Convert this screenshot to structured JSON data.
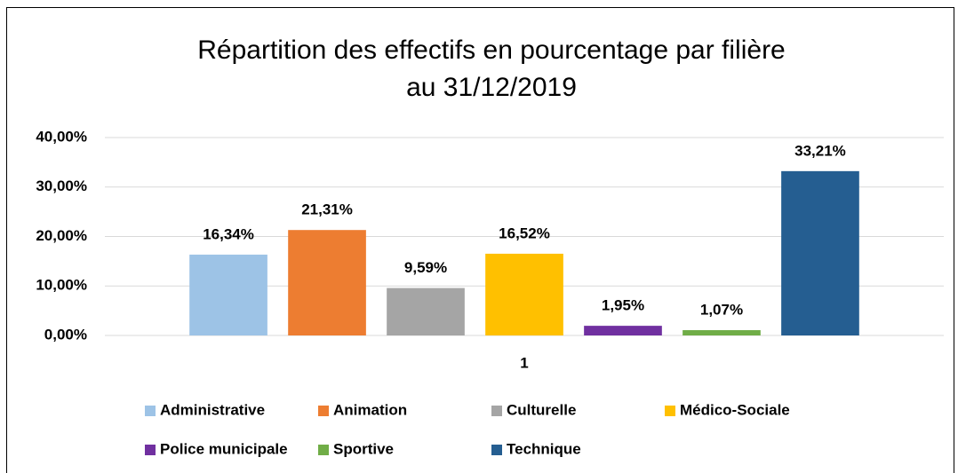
{
  "chart_data": {
    "type": "bar",
    "title": [
      "Répartition des effectifs  en pourcentage par filière",
      "au 31/12/2019"
    ],
    "categories": [
      "1"
    ],
    "series": [
      {
        "name": "Administrative",
        "color": "#9dc3e6",
        "values": [
          16.34
        ],
        "value_labels": [
          "16,34%"
        ]
      },
      {
        "name": "Animation",
        "color": "#ed7d31",
        "values": [
          21.31
        ],
        "value_labels": [
          "21,31%"
        ]
      },
      {
        "name": "Culturelle",
        "color": "#a5a5a5",
        "values": [
          9.59
        ],
        "value_labels": [
          "9,59%"
        ]
      },
      {
        "name": "Médico-Sociale",
        "color": "#ffc000",
        "values": [
          16.52
        ],
        "value_labels": [
          "16,52%"
        ]
      },
      {
        "name": "Police municipale",
        "color": "#7030a0",
        "values": [
          1.95
        ],
        "value_labels": [
          "1,95%"
        ]
      },
      {
        "name": "Sportive",
        "color": "#70ad47",
        "values": [
          1.07
        ],
        "value_labels": [
          "1,07%"
        ]
      },
      {
        "name": "Technique",
        "color": "#255e91",
        "values": [
          33.21
        ],
        "value_labels": [
          "33,21%"
        ]
      }
    ],
    "ylim": [
      0,
      40
    ],
    "yticks": [
      {
        "value": 0,
        "label": "0,00%"
      },
      {
        "value": 10,
        "label": "10,00%"
      },
      {
        "value": 20,
        "label": "20,00%"
      },
      {
        "value": 30,
        "label": "30,00%"
      },
      {
        "value": 40,
        "label": "40,00%"
      }
    ],
    "grid": true,
    "legend": "bottom"
  }
}
